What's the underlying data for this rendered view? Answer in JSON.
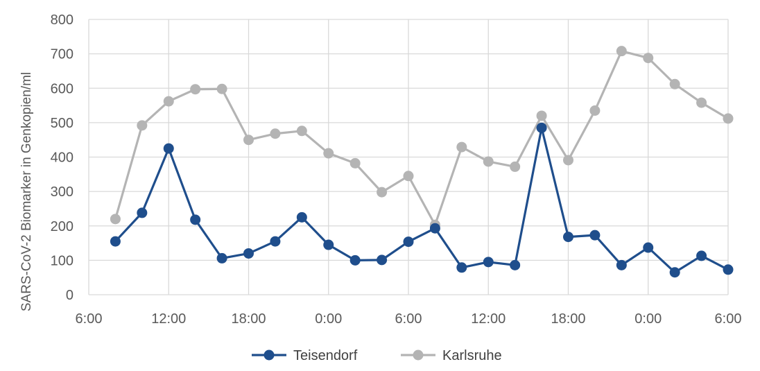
{
  "chart_data": {
    "type": "line",
    "title": "",
    "xlabel": "",
    "ylabel": "SARS-CoV-2 Biomarker in Genkopien/ml",
    "ylim": [
      0,
      800
    ],
    "yticks": [
      0,
      100,
      200,
      300,
      400,
      500,
      600,
      700,
      800
    ],
    "xlim": [
      6,
      54
    ],
    "x_unit": "hours",
    "xticks": [
      {
        "value": 6,
        "label": "6:00"
      },
      {
        "value": 12,
        "label": "12:00"
      },
      {
        "value": 18,
        "label": "18:00"
      },
      {
        "value": 24,
        "label": "0:00"
      },
      {
        "value": 30,
        "label": "6:00"
      },
      {
        "value": 36,
        "label": "12:00"
      },
      {
        "value": 42,
        "label": "18:00"
      },
      {
        "value": 48,
        "label": "0:00"
      },
      {
        "value": 54,
        "label": "6:00"
      }
    ],
    "x": [
      8,
      10,
      12,
      14,
      16,
      18,
      20,
      22,
      24,
      26,
      28,
      30,
      32,
      34,
      36,
      38,
      40,
      42,
      44,
      46,
      48,
      50,
      52,
      54
    ],
    "series": [
      {
        "name": "Teisendorf",
        "color": "#1f4e8c",
        "values": [
          155,
          238,
          425,
          218,
          106,
          120,
          155,
          225,
          145,
          100,
          101,
          154,
          193,
          79,
          95,
          86,
          485,
          168,
          173,
          86,
          137,
          65,
          113,
          73
        ]
      },
      {
        "name": "Karlsruhe",
        "color": "#b4b4b4",
        "values": [
          220,
          492,
          562,
          597,
          598,
          450,
          468,
          476,
          411,
          382,
          298,
          345,
          203,
          429,
          387,
          372,
          520,
          391,
          535,
          708,
          688,
          612,
          558,
          512
        ]
      }
    ],
    "grid": {
      "horizontal": true,
      "vertical": true
    },
    "legend": {
      "position": "bottom"
    }
  }
}
